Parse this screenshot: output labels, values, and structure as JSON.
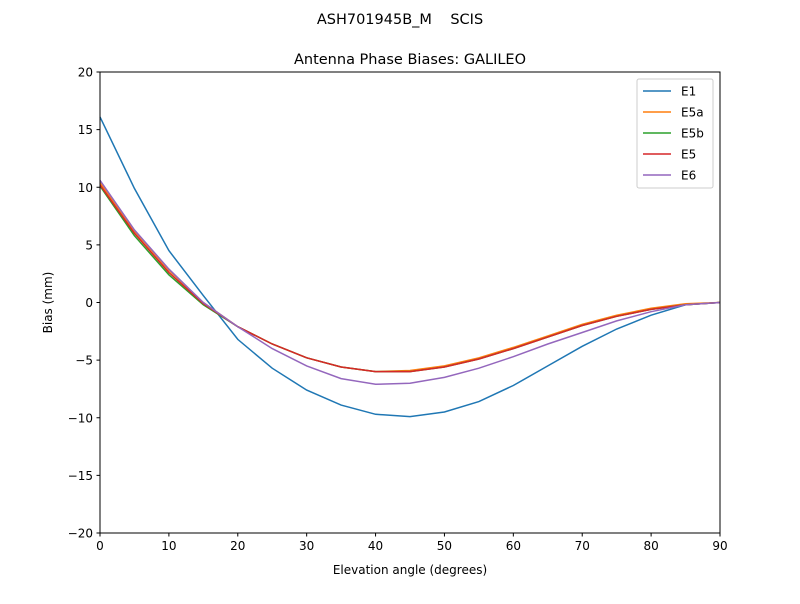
{
  "chart_data": {
    "type": "line",
    "suptitle": "ASH701945B_M    SCIS",
    "title": "Antenna Phase Biases: GALILEO",
    "xlabel": "Elevation angle (degrees)",
    "ylabel": "Bias (mm)",
    "xlim": [
      0,
      90
    ],
    "ylim": [
      -20,
      20
    ],
    "xticks": [
      0,
      10,
      20,
      30,
      40,
      50,
      60,
      70,
      80,
      90
    ],
    "yticks": [
      -20,
      -15,
      -10,
      -5,
      0,
      5,
      10,
      15,
      20
    ],
    "ytick_labels": [
      "−20",
      "−15",
      "−10",
      "−5",
      "0",
      "5",
      "10",
      "15",
      "20"
    ],
    "xtick_labels": [
      "0",
      "10",
      "20",
      "30",
      "40",
      "50",
      "60",
      "70",
      "80",
      "90"
    ],
    "grid": false,
    "legend_position": "top-right",
    "x": [
      0,
      5,
      10,
      15,
      20,
      25,
      30,
      35,
      40,
      45,
      50,
      55,
      60,
      65,
      70,
      75,
      80,
      85,
      90
    ],
    "series": [
      {
        "name": "E1",
        "color": "#1f77b4",
        "values": [
          16.1,
          9.9,
          4.5,
          0.6,
          -3.2,
          -5.7,
          -7.6,
          -8.9,
          -9.7,
          -9.9,
          -9.5,
          -8.6,
          -7.2,
          -5.5,
          -3.8,
          -2.3,
          -1.1,
          -0.2,
          0
        ]
      },
      {
        "name": "E5a",
        "color": "#ff7f0e",
        "values": [
          10.4,
          6.2,
          2.8,
          0.0,
          -2.1,
          -3.6,
          -4.8,
          -5.6,
          -6.0,
          -5.9,
          -5.5,
          -4.8,
          -3.9,
          -2.9,
          -1.9,
          -1.1,
          -0.5,
          -0.1,
          0
        ]
      },
      {
        "name": "E5b",
        "color": "#2ca02c",
        "values": [
          10.1,
          5.8,
          2.4,
          -0.2,
          -2.1,
          -3.6,
          -4.8,
          -5.6,
          -6.0,
          -6.0,
          -5.6,
          -4.9,
          -4.0,
          -3.0,
          -2.0,
          -1.2,
          -0.6,
          -0.2,
          0
        ]
      },
      {
        "name": "E5",
        "color": "#d62728",
        "values": [
          10.2,
          6.0,
          2.6,
          -0.1,
          -2.1,
          -3.6,
          -4.8,
          -5.6,
          -6.0,
          -6.0,
          -5.6,
          -4.9,
          -4.0,
          -3.0,
          -2.0,
          -1.2,
          -0.6,
          -0.2,
          0
        ]
      },
      {
        "name": "E6",
        "color": "#9467bd",
        "values": [
          10.6,
          6.3,
          2.9,
          0.0,
          -2.1,
          -4.0,
          -5.5,
          -6.6,
          -7.1,
          -7.0,
          -6.5,
          -5.7,
          -4.7,
          -3.6,
          -2.6,
          -1.6,
          -0.8,
          -0.2,
          0
        ]
      }
    ]
  }
}
